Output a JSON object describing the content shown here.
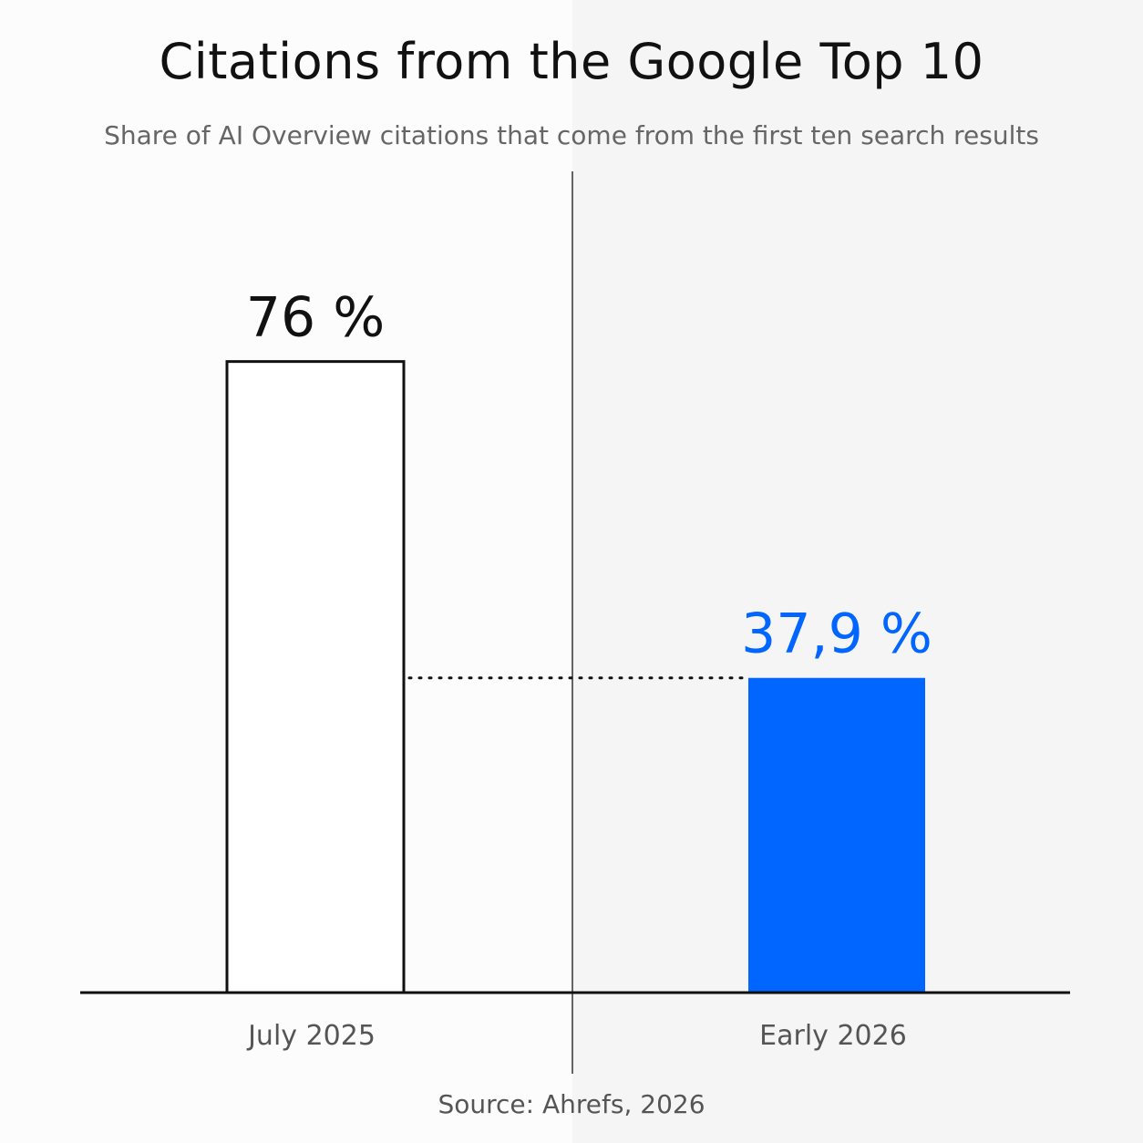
{
  "title": "Citations from the Google Top 10",
  "subtitle": "Share of AI Overview citations that come from the first ten search results",
  "source": "Source: Ahrefs, 2026",
  "colors": {
    "ink": "#111111",
    "accent": "#0066ff",
    "muted": "#666666",
    "background_left": "#fcfcfc",
    "background_right": "#f5f5f5"
  },
  "chart_data": {
    "type": "bar",
    "categories": [
      "July 2025",
      "Early 2026"
    ],
    "values": [
      76,
      37.9
    ],
    "data_labels": [
      "76 %",
      "37,9 %"
    ],
    "bar_styles": [
      "outline",
      "filled"
    ],
    "ylim": [
      0,
      100
    ],
    "grid": false,
    "legend": false,
    "reference_line": {
      "style": "dotted",
      "from_category": "July 2025",
      "to_category": "Early 2026",
      "at_value": 37.9
    },
    "divider": "vertical line between categories"
  }
}
